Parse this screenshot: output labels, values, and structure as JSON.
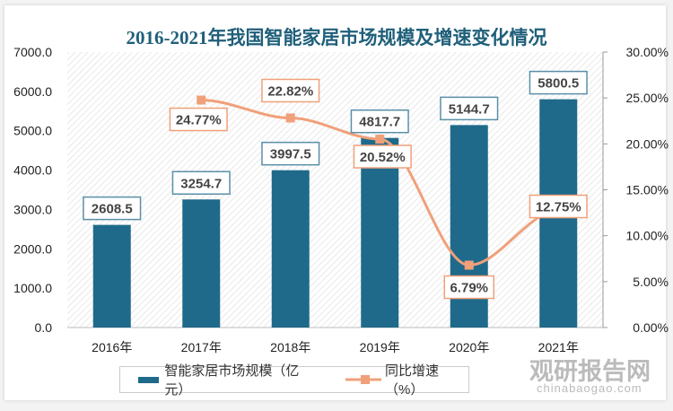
{
  "chart_data": {
    "type": "bar+line",
    "title": "2016-2021年我国智能家居市场规模及增速变化情况",
    "categories": [
      "2016年",
      "2017年",
      "2018年",
      "2019年",
      "2020年",
      "2021年"
    ],
    "series": [
      {
        "name": "智能家居市场规模（亿元）",
        "type": "bar",
        "axis": "left",
        "values": [
          2608.5,
          3254.7,
          3997.5,
          4817.7,
          5144.7,
          5800.5
        ],
        "labels": [
          "2608.5",
          "3254.7",
          "3997.5",
          "4817.7",
          "5144.7",
          "5800.5"
        ],
        "color": "#1f6a8a"
      },
      {
        "name": "同比增速（%）",
        "type": "line",
        "axis": "right",
        "values": [
          null,
          24.77,
          22.82,
          20.52,
          6.79,
          12.75
        ],
        "labels": [
          "",
          "24.77%",
          "22.82%",
          "20.52%",
          "6.79%",
          "12.75%"
        ],
        "color": "#f0a07a"
      }
    ],
    "ylim_left": [
      0,
      7000
    ],
    "yticks_left": [
      "0.0",
      "1000.0",
      "2000.0",
      "3000.0",
      "4000.0",
      "5000.0",
      "6000.0",
      "7000.0"
    ],
    "ylim_right": [
      0,
      30
    ],
    "yticks_right": [
      "0.00%",
      "5.00%",
      "10.00%",
      "15.00%",
      "20.00%",
      "25.00%",
      "30.00%"
    ],
    "legend": "bottom",
    "grid": false
  },
  "watermark": {
    "brand": "观研报告网",
    "url": "chinabaogao.com"
  }
}
